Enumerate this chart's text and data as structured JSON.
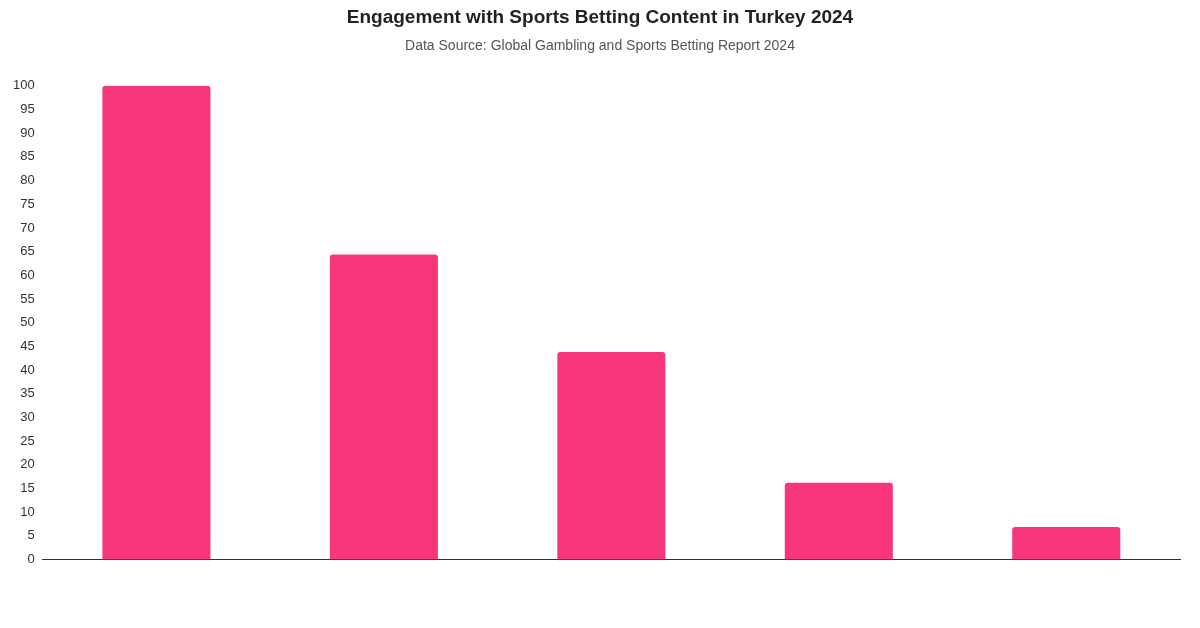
{
  "chart_data": {
    "type": "bar",
    "title": "Engagement with Sports Betting Content in Turkey 2024",
    "subtitle": "Data Source: Global Gambling and Sports Betting Report 2024",
    "categories": [
      null,
      null,
      null,
      null,
      null
    ],
    "values": [
      100,
      64.4,
      43.8,
      16.2,
      6.9
    ],
    "color": "#f6357a",
    "ylim": [
      0,
      100
    ],
    "yticks": [
      0,
      5,
      10,
      15,
      20,
      25,
      30,
      35,
      40,
      45,
      50,
      55,
      60,
      65,
      70,
      75,
      80,
      85,
      90,
      95,
      100
    ],
    "grid": false,
    "legend": false
  }
}
